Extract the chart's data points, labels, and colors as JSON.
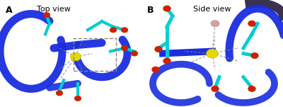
{
  "fig_width": 4.0,
  "fig_height": 1.51,
  "dpi": 100,
  "background_color": "#ffffff",
  "panel_A": {
    "label": "A",
    "title": "Top view"
  },
  "panel_B": {
    "label": "B",
    "title": "Side view"
  },
  "colors": {
    "blue_ribbon": "#1a2de0",
    "teal_sticks": "#00ced1",
    "red_oxygen": "#cc2200",
    "yellow_ca": "#e8d800",
    "pink_water": "#d4a0a0",
    "dashed_line": "#888888",
    "label_color": "#000000",
    "title_color": "#000000"
  }
}
